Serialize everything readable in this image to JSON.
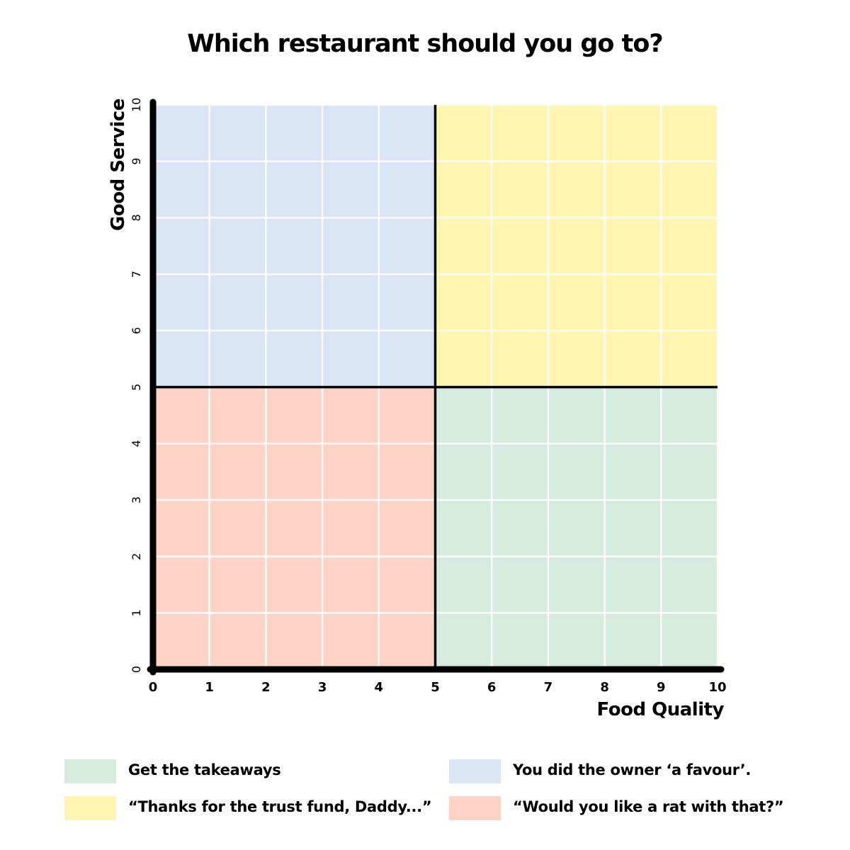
{
  "title": "Which restaurant should you go to?",
  "chart_data": {
    "type": "scatter",
    "title": "Which restaurant should you go to?",
    "xlabel": "Food Quality",
    "ylabel": "Good Service",
    "xlim": [
      0,
      10
    ],
    "ylim": [
      0,
      10
    ],
    "x_ticks": [
      "0",
      "1",
      "2",
      "3",
      "4",
      "5",
      "6",
      "7",
      "8",
      "9",
      "10"
    ],
    "y_ticks": [
      "0",
      "1",
      "2",
      "3",
      "4",
      "5",
      "6",
      "7",
      "8",
      "9",
      "10"
    ],
    "grid": true,
    "quadrant_divider": {
      "x": 5,
      "y": 5
    },
    "quadrants": [
      {
        "label": "You did the owner ‘a favour’.",
        "x_range": [
          0,
          5
        ],
        "y_range": [
          5,
          10
        ],
        "color": "#d9e5f4"
      },
      {
        "label": "“Thanks for the trust fund, Daddy...”",
        "x_range": [
          5,
          10
        ],
        "y_range": [
          5,
          10
        ],
        "color": "#fff4b0"
      },
      {
        "label": "“Would you like a rat with that?”",
        "x_range": [
          0,
          5
        ],
        "y_range": [
          0,
          5
        ],
        "color": "#fcd3c5"
      },
      {
        "label": "Get the takeaways",
        "x_range": [
          5,
          10
        ],
        "y_range": [
          0,
          5
        ],
        "color": "#d5ebdd"
      }
    ],
    "legend_placement": "bottom"
  },
  "legend": [
    {
      "label": "Get the takeaways",
      "color": "#d5ebdd"
    },
    {
      "label": "You did the owner ‘a favour’.",
      "color": "#d9e5f4"
    },
    {
      "label": "“Thanks for the trust fund, Daddy...”",
      "color": "#fff4b0"
    },
    {
      "label": "“Would you like a rat with that?”",
      "color": "#fcd3c5"
    }
  ]
}
